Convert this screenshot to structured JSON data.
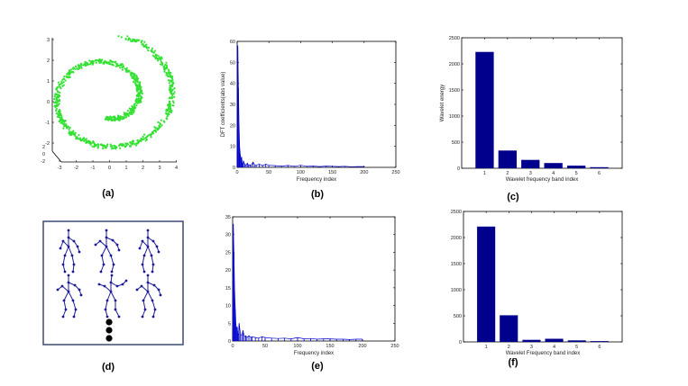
{
  "panels": {
    "a": {
      "caption": "(a)"
    },
    "b": {
      "caption": "(b)"
    },
    "c": {
      "caption": "(c)"
    },
    "d": {
      "caption": "(d)"
    },
    "e": {
      "caption": "(e)"
    },
    "f": {
      "caption": "(f)"
    }
  },
  "colors": {
    "scatter": "#33e033",
    "bars": "#00008c",
    "spectrum": "#0000cc",
    "skeleton": "#1a1a99",
    "frame": "#3c4a6e"
  },
  "chart_data": [
    {
      "id": "a",
      "type": "scatter",
      "title": "",
      "xlabel": "",
      "ylabel": "",
      "xlim": [
        -3.5,
        4
      ],
      "ylim": [
        -2.2,
        3
      ],
      "xticks": [
        "-3",
        "-2",
        "-1",
        "0",
        "1",
        "2",
        "3",
        "4"
      ],
      "yticks": [
        "3",
        "2",
        "1",
        "0",
        "-1",
        "-2"
      ],
      "zticks": [
        "2",
        "0",
        "-2"
      ],
      "description_shape": "swiss-roll spiral point cloud"
    },
    {
      "id": "b",
      "type": "line",
      "xlabel": "Frequency index",
      "ylabel": "DFT coefficients(abs value)",
      "xlim": [
        0,
        250
      ],
      "ylim": [
        0,
        60
      ],
      "xticks": [
        "0",
        "50",
        "100",
        "150",
        "200",
        "250"
      ],
      "yticks": [
        "0",
        "10",
        "20",
        "30",
        "40",
        "50",
        "60"
      ],
      "x": [
        0,
        1,
        2,
        3,
        4,
        5,
        6,
        7,
        8,
        9,
        10,
        12,
        14,
        16,
        18,
        20,
        22,
        25,
        28,
        30,
        35,
        40,
        45,
        50,
        60,
        70,
        80,
        90,
        100,
        110,
        120,
        130,
        140,
        150,
        160,
        170,
        180,
        190,
        200
      ],
      "y": [
        1,
        58,
        38,
        20,
        9,
        6,
        3,
        5,
        2,
        1.5,
        3,
        1.5,
        1,
        2,
        1,
        1.2,
        1,
        2.5,
        1,
        1,
        1.5,
        0.8,
        1.5,
        1,
        0.8,
        0.6,
        0.9,
        0.5,
        1,
        0.5,
        0.6,
        0.4,
        0.6,
        0.5,
        0.4,
        0.5,
        0.3,
        0.4,
        0.4
      ]
    },
    {
      "id": "c",
      "type": "bar",
      "xlabel": "Wavelet frequency band index",
      "ylabel": "Wavelet energy",
      "ylim": [
        0,
        2500
      ],
      "categories": [
        "1",
        "2",
        "3",
        "4",
        "5",
        "6"
      ],
      "values": [
        2230,
        340,
        160,
        100,
        50,
        20
      ],
      "yticks": [
        "0",
        "500",
        "1000",
        "1500",
        "2000",
        "2500"
      ]
    },
    {
      "id": "e",
      "type": "line",
      "xlabel": "Frequency index",
      "ylabel": "",
      "xlim": [
        0,
        250
      ],
      "ylim": [
        0,
        35
      ],
      "xticks": [
        "0",
        "50",
        "100",
        "150",
        "200",
        "250"
      ],
      "yticks": [
        "0",
        "5",
        "10",
        "15",
        "20",
        "25",
        "30",
        "35"
      ],
      "x": [
        0,
        1,
        2,
        3,
        4,
        5,
        6,
        7,
        8,
        9,
        10,
        12,
        14,
        16,
        18,
        20,
        22,
        25,
        28,
        30,
        35,
        40,
        45,
        50,
        60,
        70,
        80,
        90,
        100,
        110,
        120,
        130,
        140,
        150,
        160,
        170,
        180,
        190,
        200
      ],
      "y": [
        1,
        33,
        25,
        14,
        9,
        5,
        3,
        4,
        2,
        1.5,
        5,
        2,
        1.5,
        3,
        1.2,
        1.5,
        1,
        1.5,
        1,
        1.2,
        1,
        0.8,
        1.2,
        1,
        0.8,
        0.7,
        0.8,
        0.6,
        1,
        0.6,
        0.7,
        0.5,
        0.6,
        0.6,
        0.5,
        0.5,
        0.4,
        0.5,
        0.5
      ]
    },
    {
      "id": "f",
      "type": "bar",
      "xlabel": "Wavelet Frequency band index",
      "ylabel": "",
      "ylim": [
        0,
        2500
      ],
      "categories": [
        "1",
        "2",
        "3",
        "4",
        "5",
        "6"
      ],
      "values": [
        2210,
        510,
        40,
        60,
        30,
        15
      ],
      "yticks": [
        "0",
        "500",
        "1000",
        "1500",
        "2000",
        "2500"
      ]
    }
  ]
}
